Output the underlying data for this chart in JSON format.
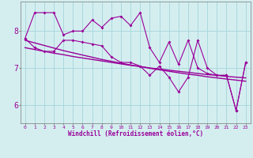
{
  "x": [
    0,
    1,
    2,
    3,
    4,
    5,
    6,
    7,
    8,
    9,
    10,
    11,
    12,
    13,
    14,
    15,
    16,
    17,
    18,
    19,
    20,
    21,
    22,
    23
  ],
  "y_main": [
    7.8,
    8.5,
    8.5,
    8.5,
    7.9,
    8.0,
    8.0,
    8.3,
    8.1,
    8.35,
    8.4,
    8.15,
    8.5,
    7.55,
    7.15,
    7.7,
    7.1,
    7.75,
    7.0,
    6.85,
    6.8,
    6.8,
    5.85,
    7.15
  ],
  "y_lower": [
    7.8,
    7.55,
    7.45,
    7.45,
    7.75,
    7.75,
    7.7,
    7.65,
    7.6,
    7.3,
    7.15,
    7.15,
    7.05,
    6.8,
    7.05,
    6.75,
    6.35,
    6.75,
    7.75,
    7.0,
    6.8,
    6.8,
    5.85,
    7.15
  ],
  "y_trend1": [
    7.75,
    7.68,
    7.61,
    7.54,
    7.47,
    7.41,
    7.35,
    7.29,
    7.23,
    7.18,
    7.13,
    7.08,
    7.04,
    6.99,
    6.95,
    6.91,
    6.87,
    6.83,
    6.8,
    6.76,
    6.73,
    6.7,
    6.67,
    6.64
  ],
  "y_trend2": [
    7.55,
    7.5,
    7.45,
    7.4,
    7.36,
    7.31,
    7.27,
    7.23,
    7.19,
    7.15,
    7.11,
    7.07,
    7.04,
    7.0,
    6.97,
    6.94,
    6.91,
    6.88,
    6.85,
    6.82,
    6.8,
    6.77,
    6.75,
    6.73
  ],
  "line_color": "#990099",
  "background_color": "#d4eef0",
  "grid_color": "#aad8dc",
  "xlabel": "Windchill (Refroidissement éolien,°C)",
  "xtick_labels": [
    "0",
    "1",
    "2",
    "3",
    "4",
    "5",
    "6",
    "7",
    "8",
    "9",
    "10",
    "11",
    "12",
    "13",
    "14",
    "15",
    "16",
    "17",
    "18",
    "19",
    "20",
    "21",
    "22",
    "23"
  ],
  "ylim": [
    5.5,
    8.8
  ],
  "yticks": [
    6,
    7,
    8
  ],
  "xlim": [
    -0.5,
    23.5
  ]
}
